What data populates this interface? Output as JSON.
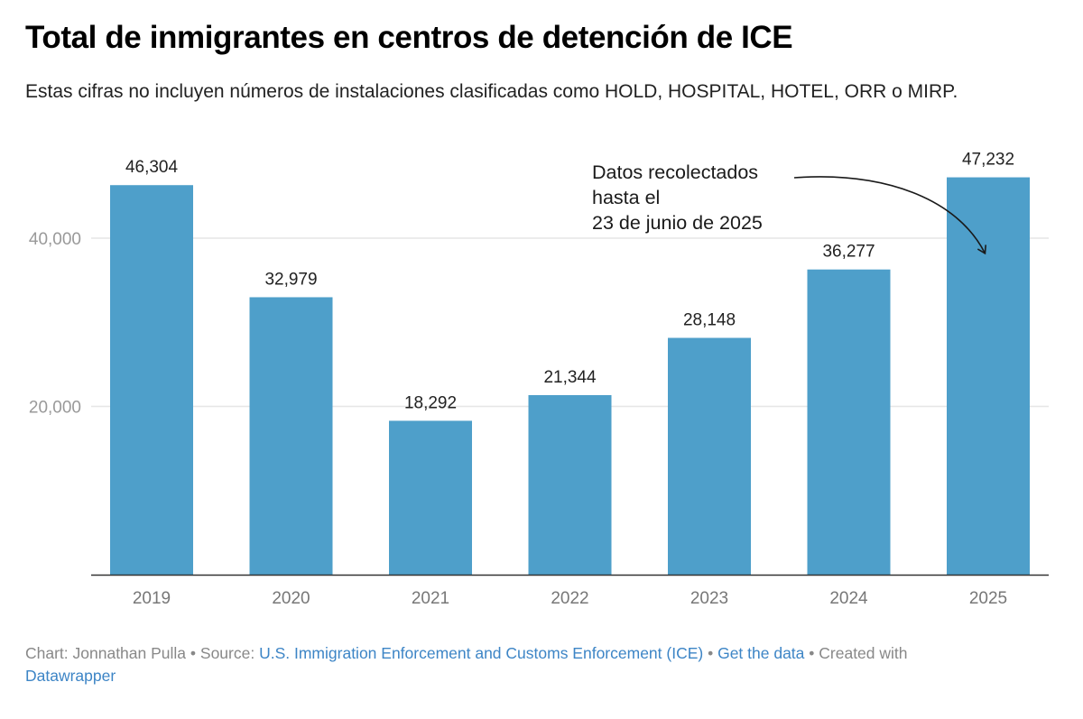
{
  "header": {
    "title": "Total de inmigrantes en centros de detención de ICE",
    "subtitle": "Estas cifras no incluyen números de instalaciones clasificadas como HOLD, HOSPITAL, HOTEL, ORR o MIRP."
  },
  "colors": {
    "bar": "#4e9fca",
    "gridline": "#e6e6e6",
    "baseline": "#333333",
    "link": "#3d85c6",
    "muted_text": "#888888"
  },
  "chart_data": {
    "type": "bar",
    "title": "Total de inmigrantes en centros de detención de ICE",
    "subtitle": "Estas cifras no incluyen números de instalaciones clasificadas como HOLD, HOSPITAL, HOTEL, ORR o MIRP.",
    "xlabel": "",
    "ylabel": "",
    "categories": [
      "2019",
      "2020",
      "2021",
      "2022",
      "2023",
      "2024",
      "2025"
    ],
    "values": [
      46304,
      32979,
      18292,
      21344,
      28148,
      36277,
      47232
    ],
    "value_labels": [
      "46,304",
      "32,979",
      "18,292",
      "21,344",
      "28,148",
      "36,277",
      "47,232"
    ],
    "ylim": [
      0,
      50000
    ],
    "y_ticks": [
      20000,
      40000
    ],
    "y_tick_labels": [
      "20,000",
      "40,000"
    ],
    "grid": true,
    "legend": "none",
    "annotations": [
      {
        "lines": [
          "Datos recolectados",
          "hasta el",
          "23 de junio de 2025"
        ],
        "target_category": "2025",
        "arrow": true
      }
    ]
  },
  "footer": {
    "chart_prefix": "Chart: Jonnathan Pulla",
    "separator": " • ",
    "source_prefix": "Source: ",
    "source_link": "U.S. Immigration Enforcement and Customs Enforcement (ICE)",
    "get_data_link": "Get the data",
    "created_with": "Created with",
    "tool_link": "Datawrapper"
  }
}
